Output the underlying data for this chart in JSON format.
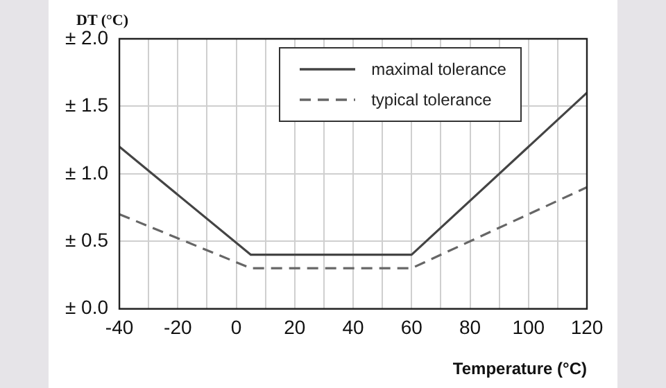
{
  "chart_data": {
    "type": "line",
    "ylabel": "DT (°C)",
    "xlabel": "Temperature (°C)",
    "xlim": [
      -40,
      120
    ],
    "xticks": [
      -40,
      {
        "value": -30,
        "label": null
      },
      -20,
      {
        "value": -10,
        "label": null
      },
      0,
      {
        "value": 10,
        "label": null
      },
      20,
      {
        "value": 30,
        "label": null
      },
      40,
      {
        "value": 50,
        "label": null
      },
      60,
      {
        "value": 70,
        "label": null
      },
      80,
      {
        "value": 90,
        "label": null
      },
      100,
      {
        "value": 110,
        "label": null
      },
      120
    ],
    "ylim": [
      0,
      2
    ],
    "yticks": [
      {
        "value": 0,
        "label": "± 0.0"
      },
      {
        "value": 0.5,
        "label": "± 0.5"
      },
      {
        "value": 1,
        "label": "± 1.0"
      },
      {
        "value": 1.5,
        "label": "± 1.5"
      },
      {
        "value": 2,
        "label": "± 2.0"
      }
    ],
    "grid": true,
    "legend": "top",
    "marker": "none",
    "series": [
      {
        "name": "maximal tolerance",
        "color": "#444444",
        "line_style": "solid",
        "x": [
          -40,
          5,
          60,
          120
        ],
        "values": [
          1.2,
          0.4,
          0.4,
          1.6
        ]
      },
      {
        "name": "typical tolerance",
        "color": "#666666",
        "line_style": "dashed",
        "x": [
          -40,
          5,
          60,
          120
        ],
        "values": [
          0.7,
          0.3,
          0.3,
          0.9
        ]
      }
    ]
  }
}
